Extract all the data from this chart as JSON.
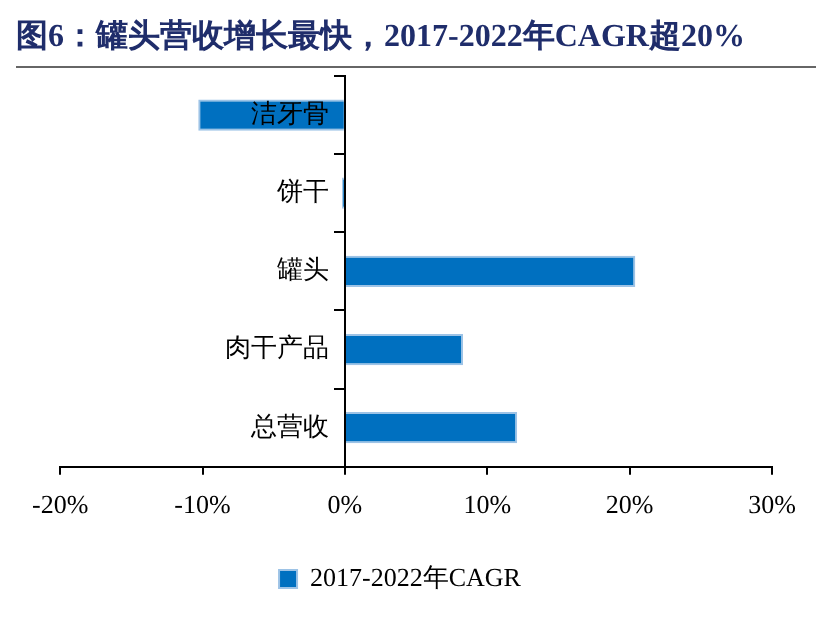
{
  "chart_data": {
    "type": "bar",
    "orientation": "horizontal",
    "title": "图6：罐头营收增长最快，2017-2022年CAGR超20%",
    "categories": [
      "洁牙骨",
      "饼干",
      "罐头",
      "肉干产品",
      "总营收"
    ],
    "series": [
      {
        "name": "2017-2022年CAGR",
        "color": "#0070c0",
        "values": [
          -10.3,
          -0.2,
          20.4,
          8.3,
          12.1
        ]
      }
    ],
    "xlim": [
      -20,
      30
    ],
    "xticks": [
      {
        "value": -20,
        "label": "-20%"
      },
      {
        "value": -10,
        "label": "-10%"
      },
      {
        "value": 0,
        "label": "0%"
      },
      {
        "value": 10,
        "label": "10%"
      },
      {
        "value": 20,
        "label": "20%"
      },
      {
        "value": 30,
        "label": "30%"
      }
    ],
    "legend": "bottom"
  }
}
